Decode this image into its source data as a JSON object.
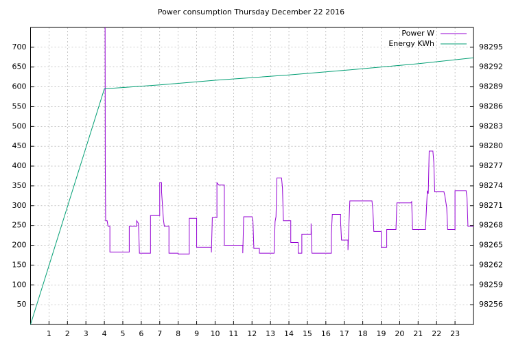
{
  "chart_data": {
    "type": "line",
    "title": "Power consumption Thursday December 22 2016",
    "xlim": [
      0,
      24
    ],
    "xticks": [
      1,
      2,
      3,
      4,
      5,
      6,
      7,
      8,
      9,
      10,
      11,
      12,
      13,
      14,
      15,
      16,
      17,
      18,
      19,
      20,
      21,
      22,
      23
    ],
    "ylim": [
      0,
      750
    ],
    "yticks": [
      50,
      100,
      150,
      200,
      250,
      300,
      350,
      400,
      450,
      500,
      550,
      600,
      650,
      700
    ],
    "y2lim": [
      98253,
      98298
    ],
    "y2ticks": [
      98256,
      98259,
      98262,
      98265,
      98268,
      98271,
      98274,
      98277,
      98280,
      98283,
      98286,
      98289,
      98292,
      98295
    ],
    "grid": true,
    "legend": "top-right",
    "series": [
      {
        "name": "Power W",
        "color": "#9400d3",
        "x": [
          4.04,
          4.05,
          4.07,
          4.15,
          4.2,
          4.3,
          4.3,
          5.35,
          5.35,
          5.75,
          5.75,
          5.85,
          5.9,
          6.5,
          6.5,
          7.0,
          7.0,
          7.1,
          7.1,
          7.2,
          7.25,
          7.5,
          7.5,
          8.0,
          8.0,
          8.6,
          8.6,
          9.0,
          9.0,
          9.8,
          9.8,
          9.85,
          10.1,
          10.1,
          10.2,
          10.5,
          10.5,
          11.5,
          11.5,
          11.55,
          12.0,
          12.05,
          12.1,
          12.4,
          12.4,
          13.2,
          13.25,
          13.3,
          13.35,
          13.6,
          13.65,
          13.7,
          14.1,
          14.1,
          14.5,
          14.5,
          14.7,
          14.7,
          15.2,
          15.2,
          15.25,
          16.3,
          16.3,
          16.35,
          16.8,
          16.8,
          16.85,
          17.2,
          17.2,
          17.3,
          18.5,
          18.55,
          18.6,
          19.0,
          19.0,
          19.3,
          19.3,
          19.8,
          19.85,
          20.6,
          20.65,
          20.7,
          21.4,
          21.4,
          21.5,
          21.55,
          21.6,
          21.8,
          21.85,
          21.9,
          22.4,
          22.45,
          22.55,
          22.6,
          23.0,
          23.0,
          23.6,
          23.65,
          23.7,
          24.0
        ],
        "values": [
          750,
          400,
          262,
          262,
          248,
          248,
          183,
          183,
          248,
          248,
          262,
          255,
          180,
          180,
          275,
          275,
          358,
          358,
          335,
          265,
          248,
          248,
          180,
          180,
          178,
          178,
          268,
          268,
          195,
          195,
          182,
          270,
          270,
          358,
          352,
          352,
          200,
          200,
          180,
          272,
          272,
          262,
          192,
          192,
          180,
          180,
          260,
          272,
          370,
          370,
          345,
          262,
          262,
          207,
          207,
          180,
          180,
          228,
          228,
          255,
          180,
          180,
          228,
          278,
          278,
          260,
          213,
          213,
          188,
          312,
          312,
          288,
          235,
          235,
          195,
          195,
          240,
          240,
          307,
          307,
          310,
          240,
          240,
          242,
          338,
          330,
          438,
          438,
          410,
          335,
          335,
          325,
          295,
          240,
          240,
          338,
          338,
          320,
          248,
          248
        ]
      },
      {
        "name": "Energy KWh",
        "color": "#009e73",
        "axis": "y2",
        "x": [
          0,
          4,
          7,
          10,
          14,
          17,
          21,
          24
        ],
        "values": [
          98253,
          98288.7,
          98289.3,
          98290.0,
          98290.8,
          98291.5,
          98292.5,
          98293.4
        ]
      }
    ]
  }
}
